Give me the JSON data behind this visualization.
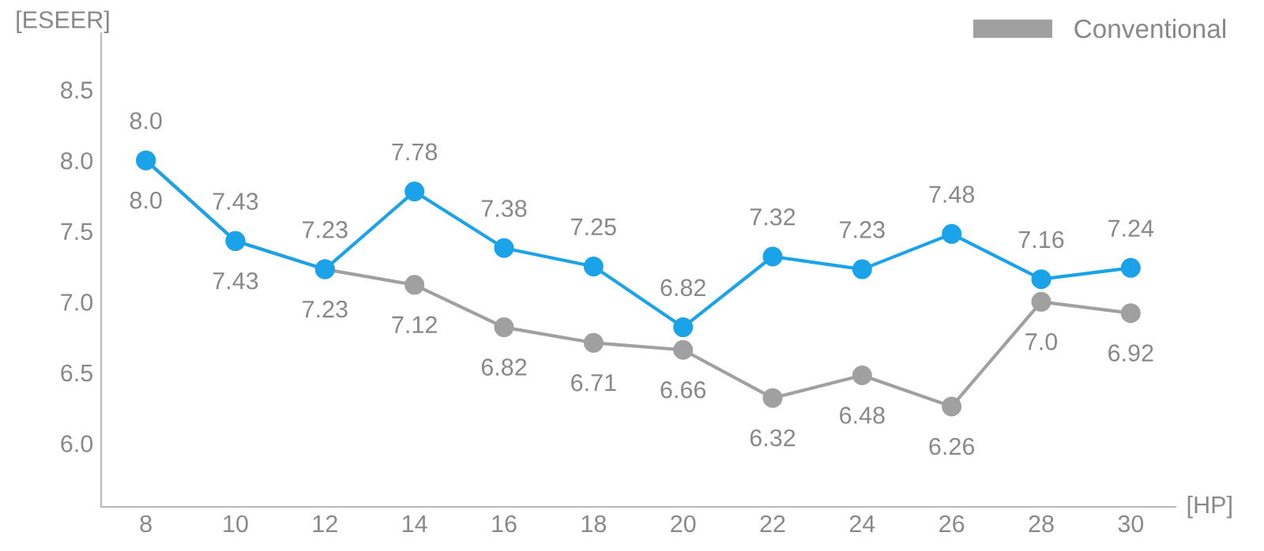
{
  "chart_data": {
    "type": "line",
    "xlabel": "[HP]",
    "ylabel": "[ESEER]",
    "categories": [
      "8",
      "10",
      "12",
      "14",
      "16",
      "18",
      "20",
      "22",
      "24",
      "26",
      "28",
      "30"
    ],
    "series": [
      {
        "color": "#1aa3e8",
        "values": [
          8.0,
          7.43,
          7.23,
          7.78,
          7.38,
          7.25,
          6.82,
          7.32,
          7.23,
          7.48,
          7.16,
          7.24
        ],
        "value_labels": [
          "8.0",
          "7.43",
          "7.23",
          "7.78",
          "7.38",
          "7.25",
          "6.82",
          "7.32",
          "7.23",
          "7.48",
          "7.16",
          "7.24"
        ]
      },
      {
        "name": "Conventional",
        "color": "#a0a0a0",
        "values": [
          8.0,
          7.43,
          7.23,
          7.12,
          6.82,
          6.71,
          6.66,
          6.32,
          6.48,
          6.26,
          7.0,
          6.92
        ],
        "value_labels": [
          "8.0",
          "7.43",
          "7.23",
          "7.12",
          "6.82",
          "6.71",
          "6.66",
          "6.32",
          "6.48",
          "6.26",
          "7.0",
          "6.92"
        ]
      }
    ],
    "ylim": [
      5.55,
      8.9
    ],
    "yticks": [
      {
        "value": 6,
        "label": "6.0"
      },
      6.5,
      {
        "value": 7,
        "label": "7.0"
      },
      7.5,
      {
        "value": 8,
        "label": "8.0"
      },
      8.5
    ],
    "grid": false,
    "legend": "top right",
    "marker": "circle",
    "line_style": "solid"
  }
}
